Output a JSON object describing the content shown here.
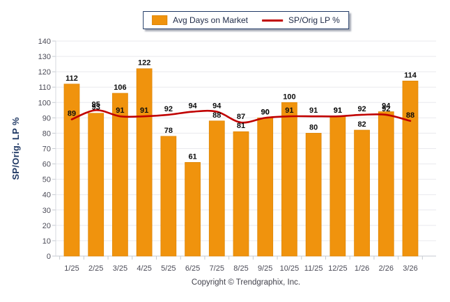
{
  "legend": {
    "bar_label": "Avg Days on Market",
    "line_label": "SP/Orig LP %"
  },
  "footer": {
    "copyright": "Copyright © Trendgraphix, Inc."
  },
  "colors": {
    "bar": "#F0930D",
    "bar_border": "#DE8606",
    "line": "#C00000",
    "axis_title": "#1F3864",
    "tick_text": "#4B4B57",
    "value_text": "#0D0D0D",
    "grid": "#E9E9ED",
    "axis": "#C6CAD1",
    "legend_border": "#1F3864"
  },
  "chart_data": {
    "type": "bar+line",
    "title": "",
    "categories": [
      "1/25",
      "2/25",
      "3/25",
      "4/25",
      "5/25",
      "6/25",
      "7/25",
      "8/25",
      "9/25",
      "10/25",
      "11/25",
      "12/25",
      "1/26",
      "2/26",
      "3/26"
    ],
    "series": [
      {
        "name": "Avg Days on Market",
        "type": "bar",
        "values": [
          112,
          93,
          106,
          122,
          78,
          61,
          88,
          81,
          90,
          100,
          80,
          91,
          82,
          94,
          114
        ]
      },
      {
        "name": "SP/Orig LP %",
        "type": "line",
        "values": [
          89,
          95,
          91,
          91,
          92,
          94,
          94,
          87,
          90,
          91,
          91,
          91,
          92,
          92,
          88
        ]
      }
    ],
    "xlabel": "",
    "ylabel": "SP/Orig. LP %",
    "ylim": [
      0,
      140
    ],
    "yticks": [
      0,
      10,
      20,
      30,
      40,
      50,
      60,
      70,
      80,
      90,
      100,
      110,
      120,
      130,
      140
    ],
    "grid": true,
    "legend_position": "top-center"
  }
}
